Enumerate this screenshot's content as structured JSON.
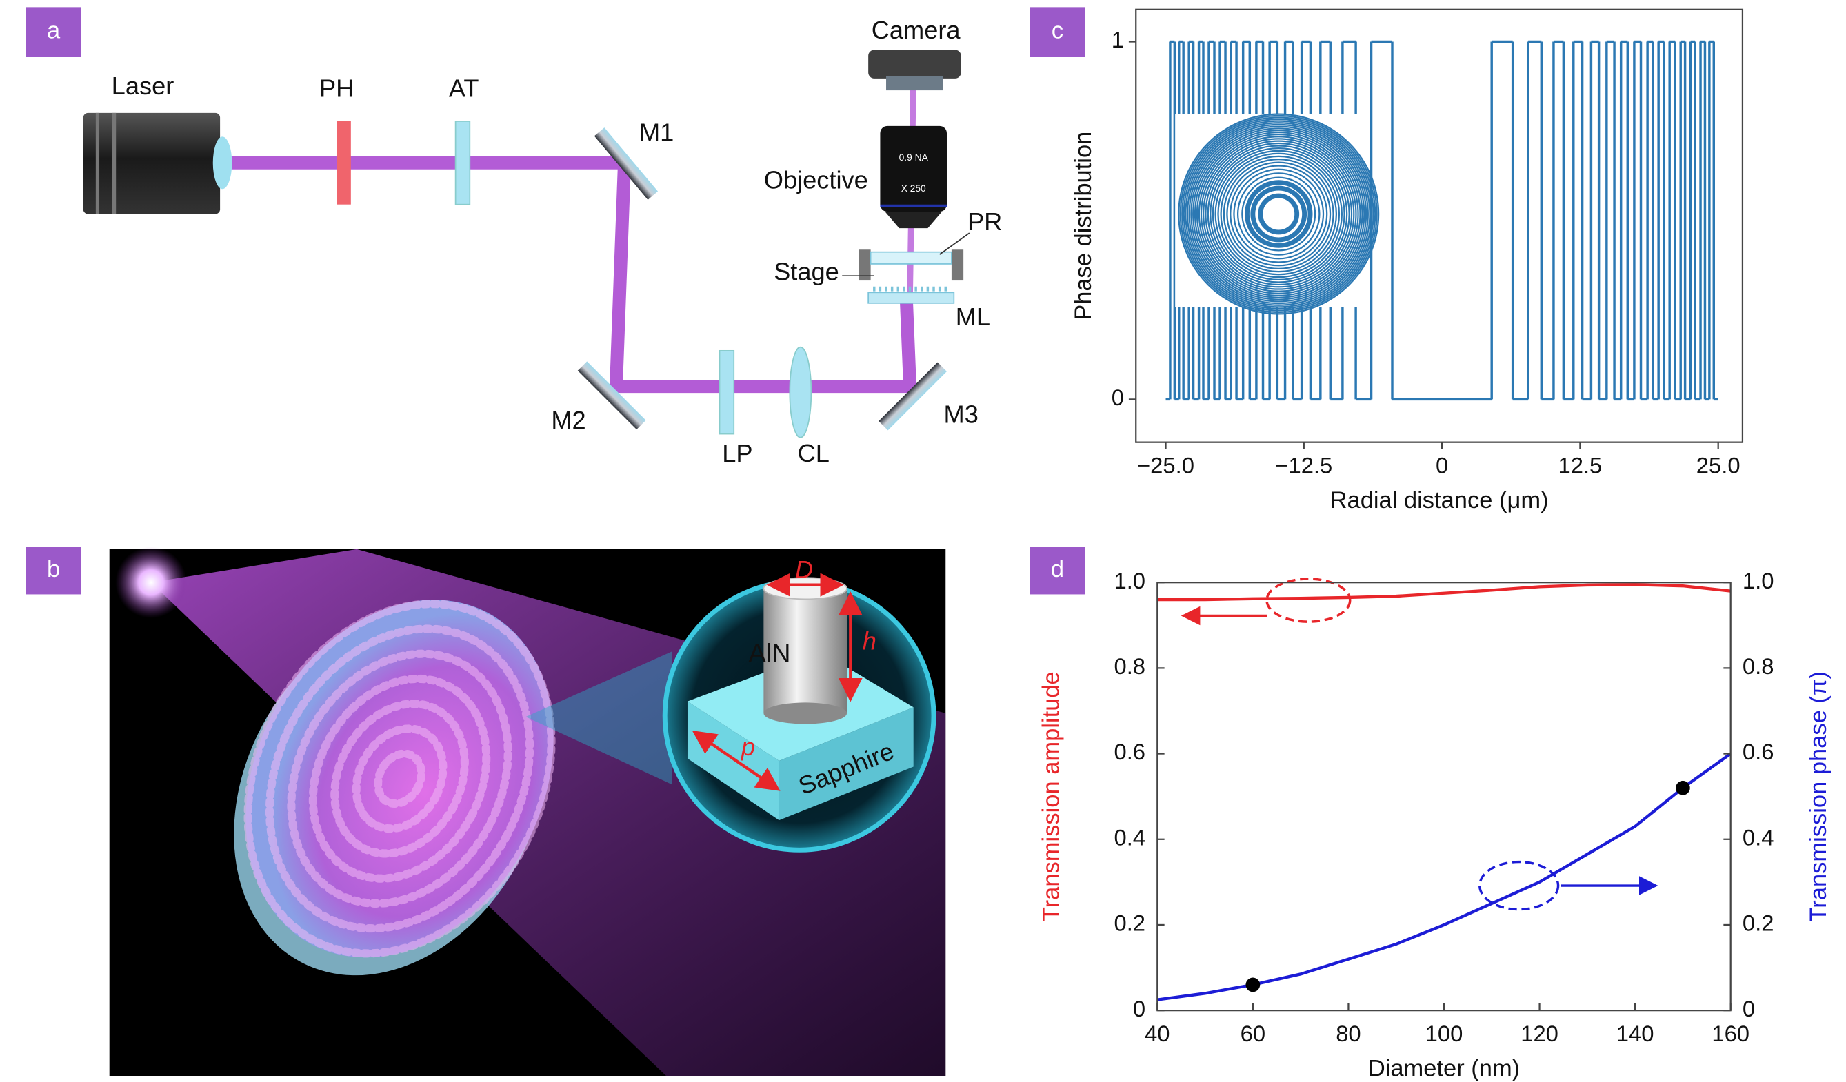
{
  "panel_labels": [
    "a",
    "b",
    "c",
    "d"
  ],
  "setup": {
    "laser": "Laser",
    "pinhole": "PH",
    "attenuator": "AT",
    "mirror_1": "M1",
    "camera": "Camera",
    "objective": "Objective",
    "objective_na": "0.9 NA",
    "objective_mag": "X 250",
    "sample": "PR",
    "stage": "Stage",
    "metalens": "ML",
    "mirror_2": "M2",
    "polarizer": "LP",
    "lens": "CL",
    "mirror_3": "M3"
  },
  "illustration": {
    "pillar": "AlN",
    "substrate": "Sapphire",
    "diameter": "D",
    "height": "h",
    "period": "p"
  },
  "chart_data": [
    {
      "type": "line",
      "step": "post",
      "xlabel": "Radial distance (μm)",
      "ylabel": "Phase distribution",
      "color": "#2b78b3",
      "x": [
        -25,
        -24.6,
        -24.2,
        -23.8,
        -23.4,
        -22.9,
        -22.5,
        -22,
        -21.6,
        -21.1,
        -20.6,
        -20.1,
        -19.6,
        -19.1,
        -18.6,
        -18,
        -17.4,
        -16.8,
        -16.2,
        -15.6,
        -14.9,
        -14.2,
        -13.5,
        -12.7,
        -11.9,
        -11,
        -10.1,
        -9,
        -7.8,
        -6.4,
        -4.5,
        4.5,
        6.4,
        7.8,
        9,
        10.1,
        11,
        11.9,
        12.7,
        13.5,
        14.2,
        14.9,
        15.6,
        16.2,
        16.8,
        17.4,
        18,
        18.6,
        19.1,
        19.6,
        20.1,
        20.6,
        21.1,
        21.6,
        22,
        22.5,
        22.9,
        23.4,
        23.8,
        24.2,
        24.6,
        25
      ],
      "values": [
        0,
        1,
        0,
        1,
        0,
        1,
        0,
        1,
        0,
        1,
        0,
        1,
        0,
        1,
        0,
        1,
        0,
        1,
        0,
        1,
        0,
        1,
        0,
        1,
        0,
        1,
        0,
        1,
        0,
        1,
        0,
        1,
        0,
        1,
        0,
        1,
        0,
        1,
        0,
        1,
        0,
        1,
        0,
        1,
        0,
        1,
        0,
        1,
        0,
        1,
        0,
        1,
        0,
        1,
        0,
        1,
        0,
        1,
        0,
        1,
        0,
        0
      ],
      "xlim": [
        -27.7,
        27.2
      ],
      "ylim": [
        -0.12,
        1.09
      ],
      "xticks": [
        {
          "value": -25,
          "label": "−25.0"
        },
        {
          "value": -12.5,
          "label": "−12.5"
        },
        0,
        12.5,
        {
          "value": 25,
          "label": "25.0"
        }
      ],
      "yticks": [
        0,
        1
      ]
    },
    {
      "type": "line",
      "xlabel": "Diameter (nm)",
      "ylabel": "Transmission amplitude",
      "y2label": "Transmission phase (π)",
      "x": [
        40,
        50,
        60,
        70,
        80,
        90,
        100,
        110,
        120,
        130,
        140,
        150,
        160
      ],
      "series": [
        {
          "color": "#e8262a",
          "values": [
            0.96,
            0.96,
            0.962,
            0.963,
            0.965,
            0.968,
            0.975,
            0.982,
            0.99,
            0.994,
            0.995,
            0.992,
            0.98
          ]
        },
        {
          "color": "#1c1cd6",
          "axis": "y2",
          "values": [
            0.025,
            0.04,
            0.06,
            0.085,
            0.12,
            0.155,
            0.2,
            0.25,
            0.3,
            0.365,
            0.43,
            0.52,
            0.6
          ]
        }
      ],
      "highlight_points": {
        "x": [
          60,
          150
        ],
        "values": [
          0.06,
          0.52
        ],
        "color": "#000000"
      },
      "xlim": [
        40,
        160
      ],
      "ylim": [
        0,
        1
      ],
      "y2lim": [
        0,
        1
      ],
      "xticks": [
        40,
        60,
        80,
        100,
        120,
        140,
        160
      ],
      "yticks": [
        0,
        0.2,
        0.4,
        0.6,
        0.8,
        {
          "value": 1,
          "label": "1.0"
        }
      ],
      "y2ticks": [
        0,
        0.2,
        0.4,
        0.6,
        0.8,
        {
          "value": 1,
          "label": "1.0"
        }
      ]
    }
  ]
}
